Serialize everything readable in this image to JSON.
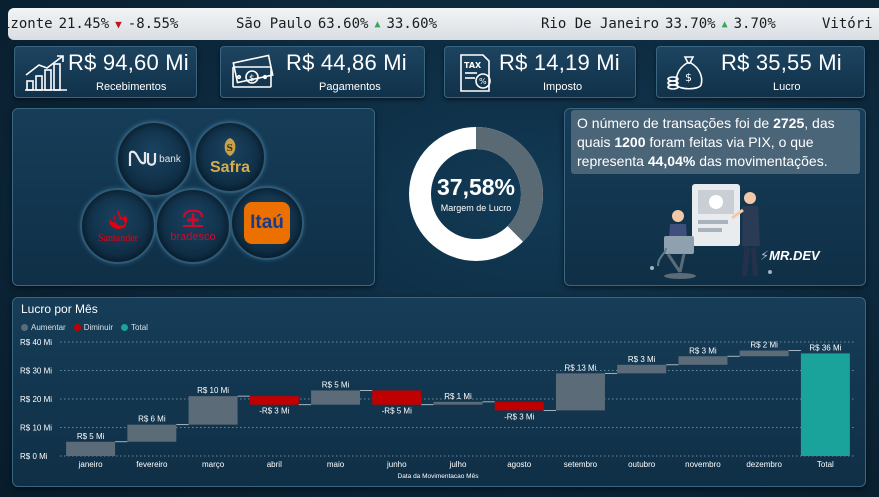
{
  "ticker": {
    "items": [
      {
        "city": "izonte",
        "pct": "21.45%",
        "dir": "down",
        "change": "-8.55%"
      },
      {
        "city": "São Paulo",
        "pct": "63.60%",
        "dir": "up",
        "change": "33.60%"
      },
      {
        "city": "Rio De Janeiro",
        "pct": "33.70%",
        "dir": "up",
        "change": "3.70%"
      },
      {
        "city": "Vitóri",
        "pct": "",
        "dir": "",
        "change": ""
      }
    ]
  },
  "kpis": [
    {
      "value": "R$ 94,60 Mi",
      "label": "Recebimentos",
      "icon": "growth-chart-icon"
    },
    {
      "value": "R$ 44,86 Mi",
      "label": "Pagamentos",
      "icon": "cash-payment-icon"
    },
    {
      "value": "R$ 14,19 Mi",
      "label": "Imposto",
      "icon": "tax-document-icon"
    },
    {
      "value": "R$ 35,55 Mi",
      "label": "Lucro",
      "icon": "money-bag-icon"
    }
  ],
  "banks": {
    "nubank": "bank",
    "safra": "Safra",
    "santander": "Santander",
    "bradesco": "bradesco",
    "itau": "Itaú"
  },
  "margin": {
    "value": "37,58%",
    "label": "Margem de Lucro",
    "fraction": 0.3758
  },
  "info": {
    "t1": "O número de transações foi de ",
    "n1": "2725",
    "t2": ", das quais ",
    "n2": "1200",
    "t3": " foram feitas via PIX, o que representa ",
    "n3": "44,04%",
    "t4": " das movimentações."
  },
  "brand": "MR.DEV",
  "colors": {
    "increase": "#5b6b77",
    "decrease": "#c00000",
    "total": "#1aa39a",
    "donut_fill": "#5a6a75",
    "donut_rest": "#ffffff"
  },
  "chart_data": {
    "type": "waterfall",
    "title": "Lucro por Mês",
    "legend": [
      "Aumentar",
      "Diminuir",
      "Total"
    ],
    "xlabel": "Data da Movimentacao Mês",
    "ylabel": "",
    "y_ticks": [
      "R$ 0 Mi",
      "R$ 10 Mi",
      "R$ 20 Mi",
      "R$ 30 Mi",
      "R$ 40 Mi"
    ],
    "ylim": [
      0,
      40
    ],
    "categories": [
      "janeiro",
      "fevereiro",
      "março",
      "abril",
      "maio",
      "junho",
      "julho",
      "agosto",
      "setembro",
      "outubro",
      "novembro",
      "dezembro",
      "Total"
    ],
    "values": [
      5,
      6,
      10,
      -3,
      5,
      -5,
      1,
      -3,
      13,
      3,
      3,
      2,
      36
    ],
    "labels": [
      "R$ 5 Mi",
      "R$ 6 Mi",
      "R$ 10 Mi",
      "-R$ 3 Mi",
      "R$ 5 Mi",
      "-R$ 5 Mi",
      "R$ 1 Mi",
      "-R$ 3 Mi",
      "R$ 13 Mi",
      "R$ 3 Mi",
      "R$ 3 Mi",
      "R$ 2 Mi",
      "R$ 36 Mi"
    ],
    "is_total": [
      false,
      false,
      false,
      false,
      false,
      false,
      false,
      false,
      false,
      false,
      false,
      false,
      true
    ]
  }
}
